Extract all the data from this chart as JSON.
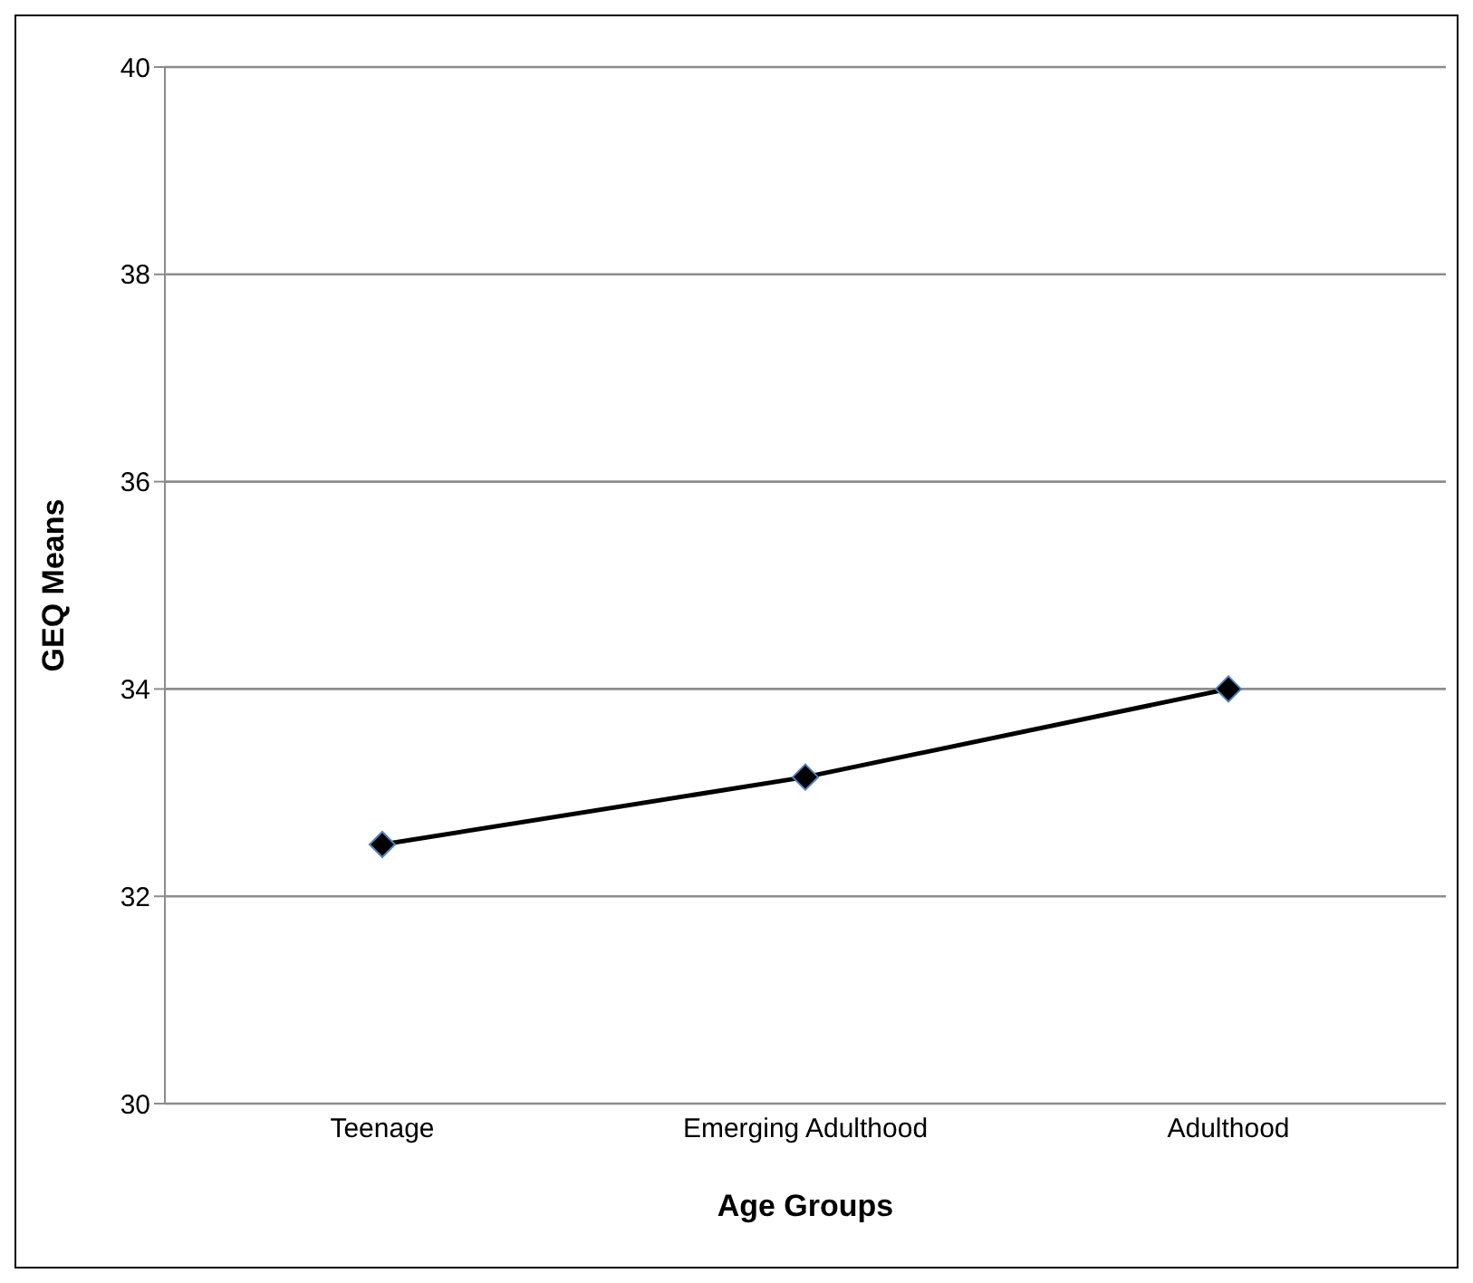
{
  "chart_data": {
    "type": "line",
    "xlabel": "Age Groups",
    "ylabel": "GEQ Means",
    "categories": [
      "Teenage",
      "Emerging Adulthood",
      "Adulthood"
    ],
    "series": [
      {
        "color": "#000000",
        "values": [
          32.5,
          33.15,
          34.0
        ]
      }
    ],
    "ylim": [
      30,
      40
    ],
    "yticks": [
      30,
      32,
      34,
      36,
      38,
      40
    ],
    "grid": "y",
    "legend": false,
    "marker": "diamond",
    "line_style": "solid"
  }
}
